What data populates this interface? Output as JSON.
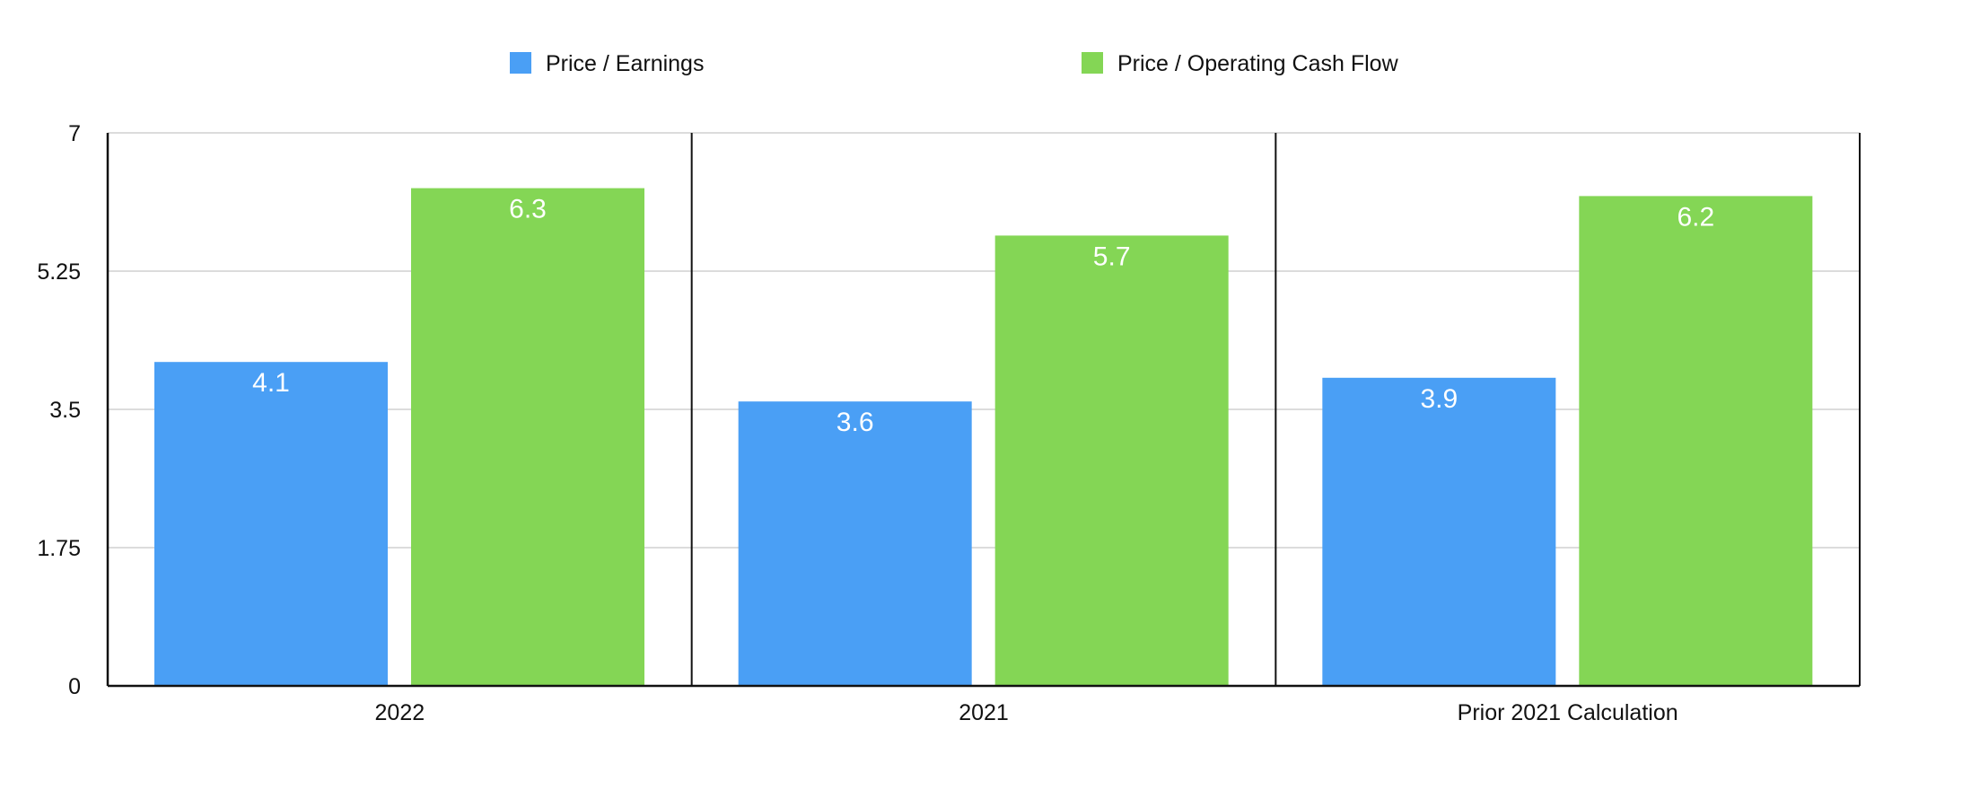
{
  "chart_data": {
    "type": "bar",
    "categories": [
      "2022",
      "2021",
      "Prior 2021 Calculation"
    ],
    "series": [
      {
        "name": "Price / Earnings",
        "values": [
          4.1,
          3.6,
          3.9
        ],
        "labels": [
          "4.1",
          "3.6",
          "3.9"
        ],
        "color": "#4A9FF5"
      },
      {
        "name": "Price / Operating Cash Flow",
        "values": [
          6.3,
          5.7,
          6.2
        ],
        "labels": [
          "6.3",
          "5.7",
          "6.2"
        ],
        "color": "#84D655"
      }
    ],
    "yticks": [
      0,
      1.75,
      3.5,
      5.25,
      7
    ],
    "ytick_labels": [
      "0",
      "1.75",
      "3.5",
      "5.25",
      "7"
    ],
    "ylim": [
      0,
      7
    ],
    "title": "",
    "xlabel": "",
    "ylabel": "",
    "grid": true,
    "legend_position": "top-center",
    "colors": {
      "gridline": "#D0D0D0",
      "axis": "#111111",
      "data_label": "#FFFFFF"
    }
  }
}
